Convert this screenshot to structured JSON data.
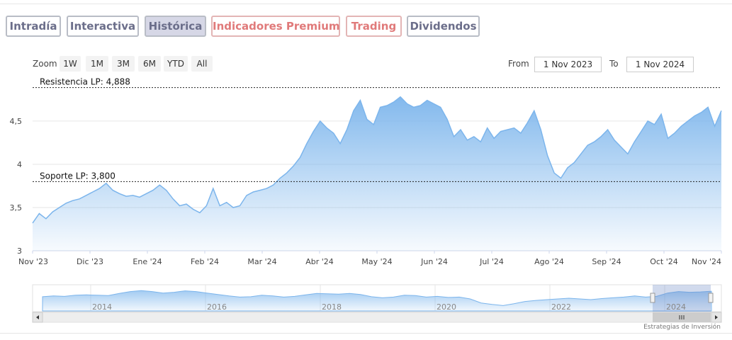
{
  "tabs": [
    {
      "label": "Intradía",
      "active": false,
      "tone": "gray"
    },
    {
      "label": "Interactiva",
      "active": false,
      "tone": "gray"
    },
    {
      "label": "Histórica",
      "active": true,
      "tone": "gray"
    },
    {
      "label": "Indicadores Premium",
      "active": false,
      "tone": "red"
    },
    {
      "label": "Trading",
      "active": false,
      "tone": "red"
    },
    {
      "label": "Dividendos",
      "active": false,
      "tone": "gray"
    }
  ],
  "zoom": {
    "label": "Zoom",
    "buttons": [
      "1W",
      "1M",
      "3M",
      "6M",
      "YTD",
      "All"
    ]
  },
  "range": {
    "from_label": "From",
    "from_value": "1 Nov 2023",
    "to_label": "To",
    "to_value": "1 Nov 2024"
  },
  "credit": "Estrategias de Inversión",
  "chart_data": {
    "type": "area",
    "y_ticks": [
      "3",
      "3,5",
      "4",
      "4,5"
    ],
    "ylim": [
      3,
      4.95
    ],
    "x_ticks": [
      "Nov '23",
      "Dic '23",
      "Ene '24",
      "Feb '24",
      "Mar '24",
      "Abr '24",
      "May '24",
      "Jun '24",
      "Jul '24",
      "Ago '24",
      "Sep '24",
      "Oct '24",
      "Nov '24"
    ],
    "grid": true,
    "series": [
      {
        "values": [
          3.32,
          3.43,
          3.37,
          3.45,
          3.5,
          3.55,
          3.58,
          3.6,
          3.64,
          3.68,
          3.72,
          3.78,
          3.7,
          3.66,
          3.63,
          3.64,
          3.62,
          3.66,
          3.7,
          3.76,
          3.7,
          3.6,
          3.52,
          3.54,
          3.48,
          3.44,
          3.52,
          3.72,
          3.52,
          3.56,
          3.5,
          3.52,
          3.64,
          3.68,
          3.7,
          3.72,
          3.76,
          3.84,
          3.9,
          3.98,
          4.08,
          4.24,
          4.38,
          4.5,
          4.42,
          4.36,
          4.24,
          4.4,
          4.62,
          4.74,
          4.52,
          4.46,
          4.66,
          4.68,
          4.72,
          4.78,
          4.7,
          4.66,
          4.68,
          4.74,
          4.7,
          4.66,
          4.52,
          4.32,
          4.4,
          4.28,
          4.32,
          4.26,
          4.42,
          4.3,
          4.38,
          4.4,
          4.42,
          4.36,
          4.48,
          4.62,
          4.4,
          4.1,
          3.9,
          3.84,
          3.96,
          4.02,
          4.12,
          4.22,
          4.26,
          4.32,
          4.4,
          4.28,
          4.2,
          4.12,
          4.26,
          4.38,
          4.5,
          4.46,
          4.58,
          4.3,
          4.36,
          4.44,
          4.5,
          4.56,
          4.6,
          4.66,
          4.44,
          4.62
        ],
        "color": "#7cb5ec"
      }
    ],
    "plot_lines": [
      {
        "label": "Resistencia LP: 4,888",
        "value": 4.888
      },
      {
        "label": "Soporte LP: 3,800",
        "value": 3.8
      }
    ],
    "navigator": {
      "x_ticks": [
        "2014",
        "2016",
        "2018",
        "2020",
        "2022",
        "2024"
      ],
      "series": [
        0.62,
        0.66,
        0.64,
        0.7,
        0.72,
        0.7,
        0.68,
        0.8,
        0.9,
        0.95,
        0.9,
        0.82,
        0.86,
        0.94,
        0.9,
        0.82,
        0.74,
        0.66,
        0.6,
        0.62,
        0.7,
        0.66,
        0.6,
        0.64,
        0.72,
        0.8,
        0.78,
        0.76,
        0.8,
        0.74,
        0.62,
        0.56,
        0.6,
        0.7,
        0.68,
        0.6,
        0.64,
        0.58,
        0.6,
        0.5,
        0.28,
        0.2,
        0.14,
        0.24,
        0.36,
        0.42,
        0.46,
        0.5,
        0.54,
        0.5,
        0.46,
        0.52,
        0.56,
        0.6,
        0.66,
        0.6,
        0.64,
        0.82,
        0.9,
        0.86,
        0.88,
        0.92
      ]
    }
  }
}
